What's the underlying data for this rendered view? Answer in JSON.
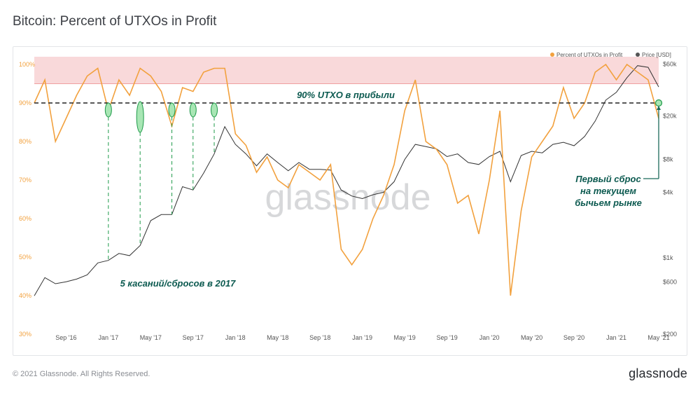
{
  "title": "Bitcoin: Percent of UTXOs in Profit",
  "footer": {
    "copyright": "© 2021 Glassnode. All Rights Reserved.",
    "brand": "glassnode"
  },
  "watermark": "glassnode",
  "colors": {
    "utxo": "#f2a13e",
    "price": "#333333",
    "zone": "#f9d9da",
    "zone_line": "#f0a0a0",
    "annotation": "#1f9a4a",
    "annotation_text": "#0c5a50"
  },
  "chart_data": {
    "type": "line",
    "title": "Bitcoin: Percent of UTXOs in Profit",
    "x_ticks": [
      "Sep '16",
      "Jan '17",
      "May '17",
      "Sep '17",
      "Jan '18",
      "May '18",
      "Sep '18",
      "Jan '19",
      "May '19",
      "Sep '19",
      "Jan '20",
      "May '20",
      "Sep '20",
      "Jan '21",
      "May '21"
    ],
    "left_axis": {
      "ticks": [
        "100%",
        "90%",
        "80%",
        "70%",
        "60%",
        "50%",
        "40%",
        "30%"
      ],
      "ylim": [
        30,
        102
      ]
    },
    "right_axis": {
      "ticks": [
        "$60k",
        "$20k",
        "$8k",
        "$4k",
        "$1k",
        "$600",
        "$200"
      ],
      "scale": "log",
      "ylim": [
        200,
        70000
      ]
    },
    "legend": {
      "placement": "top-right",
      "items": [
        {
          "label": "Percent of UTXOs in Profit",
          "color": "#f2a13e"
        },
        {
          "label": "Price [USD]",
          "color": "#555555"
        }
      ]
    },
    "series": [
      {
        "name": "Percent of UTXOs in Profit",
        "axis": "left",
        "x": [
          "2016-06",
          "2016-07",
          "2016-08",
          "2016-09",
          "2016-10",
          "2016-11",
          "2016-12",
          "2017-01",
          "2017-02",
          "2017-03",
          "2017-04",
          "2017-05",
          "2017-06",
          "2017-07",
          "2017-08",
          "2017-09",
          "2017-10",
          "2017-11",
          "2017-12",
          "2018-01",
          "2018-02",
          "2018-03",
          "2018-04",
          "2018-05",
          "2018-06",
          "2018-07",
          "2018-08",
          "2018-09",
          "2018-10",
          "2018-11",
          "2018-12",
          "2019-01",
          "2019-02",
          "2019-03",
          "2019-04",
          "2019-05",
          "2019-06",
          "2019-07",
          "2019-08",
          "2019-09",
          "2019-10",
          "2019-11",
          "2019-12",
          "2020-01",
          "2020-02",
          "2020-03",
          "2020-04",
          "2020-05",
          "2020-06",
          "2020-07",
          "2020-08",
          "2020-09",
          "2020-10",
          "2020-11",
          "2020-12",
          "2021-01",
          "2021-02",
          "2021-03",
          "2021-04",
          "2021-05"
        ],
        "values": [
          90,
          96,
          80,
          86,
          92,
          97,
          99,
          88,
          96,
          92,
          99,
          97,
          93,
          84,
          94,
          93,
          98,
          99,
          99,
          82,
          79,
          72,
          76,
          70,
          68,
          74,
          72,
          70,
          74,
          52,
          48,
          52,
          60,
          66,
          74,
          88,
          96,
          80,
          78,
          74,
          64,
          66,
          56,
          70,
          88,
          40,
          62,
          76,
          80,
          84,
          94,
          86,
          90,
          98,
          100,
          96,
          100,
          98,
          96,
          86
        ]
      },
      {
        "name": "Price [USD]",
        "axis": "right",
        "x": [
          "2016-06",
          "2016-07",
          "2016-08",
          "2016-09",
          "2016-10",
          "2016-11",
          "2016-12",
          "2017-01",
          "2017-02",
          "2017-03",
          "2017-04",
          "2017-05",
          "2017-06",
          "2017-07",
          "2017-08",
          "2017-09",
          "2017-10",
          "2017-11",
          "2017-12",
          "2018-01",
          "2018-02",
          "2018-03",
          "2018-04",
          "2018-05",
          "2018-06",
          "2018-07",
          "2018-08",
          "2018-09",
          "2018-10",
          "2018-11",
          "2018-12",
          "2019-01",
          "2019-02",
          "2019-03",
          "2019-04",
          "2019-05",
          "2019-06",
          "2019-07",
          "2019-08",
          "2019-09",
          "2019-10",
          "2019-11",
          "2019-12",
          "2020-01",
          "2020-02",
          "2020-03",
          "2020-04",
          "2020-05",
          "2020-06",
          "2020-07",
          "2020-08",
          "2020-09",
          "2020-10",
          "2020-11",
          "2020-12",
          "2021-01",
          "2021-02",
          "2021-03",
          "2021-04",
          "2021-05"
        ],
        "values": [
          450,
          660,
          580,
          605,
          640,
          700,
          900,
          950,
          1100,
          1050,
          1300,
          2200,
          2500,
          2500,
          4500,
          4200,
          6000,
          9000,
          16000,
          11000,
          9000,
          7000,
          9000,
          7500,
          6300,
          7500,
          6500,
          6500,
          6400,
          4200,
          3700,
          3500,
          3800,
          4000,
          5000,
          8000,
          11000,
          10500,
          10000,
          8500,
          9000,
          7500,
          7200,
          8500,
          9500,
          5000,
          8700,
          9500,
          9200,
          11000,
          11500,
          10700,
          13000,
          18000,
          28000,
          33000,
          45000,
          58000,
          56000,
          37000
        ]
      }
    ],
    "threshold": {
      "value": 90,
      "label": "90% UTXO в прибыли"
    },
    "zone": {
      "from": 95,
      "to": 102
    },
    "touch_points": [
      "2017-01",
      "2017-04",
      "2017-07",
      "2017-09",
      "2017-11"
    ],
    "current_point": "2021-05",
    "annotations": {
      "touches_label": "5 касаний/сбросов в 2017",
      "current_lines": [
        "Первый сброс",
        "на текущем",
        "бычьем рынке"
      ]
    }
  }
}
